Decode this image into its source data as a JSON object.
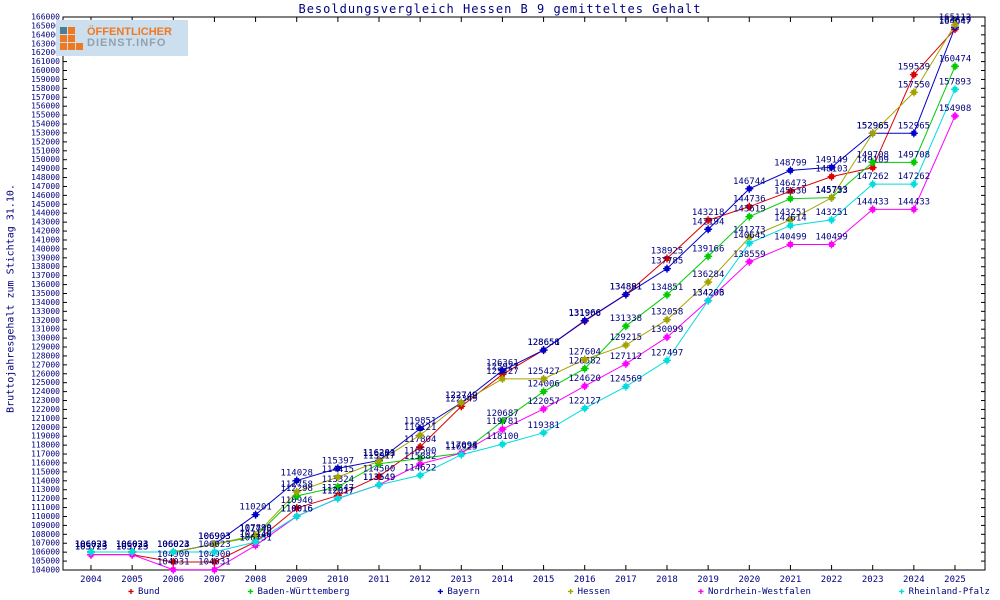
{
  "logo": {
    "line1": "ÖFFENTLICHER",
    "line2": "DIENST.INFO"
  },
  "chart_data": {
    "type": "line",
    "title": "Besoldungsvergleich Hessen B 9 gemitteltes Gehalt",
    "xlabel": "",
    "ylabel": "Bruttojahresgehalt zum Stichtag 31.10.",
    "ylim": [
      104000,
      166000
    ],
    "ytick_step": 1000,
    "grid": false,
    "legend_position": "bottom",
    "text_color": "#000080",
    "years": [
      2004,
      2005,
      2006,
      2007,
      2008,
      2009,
      2010,
      2011,
      2012,
      2013,
      2014,
      2015,
      2016,
      2017,
      2018,
      2019,
      2020,
      2021,
      2022,
      2023,
      2024,
      2025
    ],
    "series": [
      {
        "name": "Bund",
        "color": "#dd0000",
        "values": [
          105723,
          105723,
          104900,
          104900,
          107148,
          110946,
          112347,
          114500,
          117804,
          122349,
          125927,
          128651,
          131906,
          134881,
          138925,
          143218,
          144736,
          146473,
          148103,
          149109,
          159539,
          164647
        ]
      },
      {
        "name": "Baden-Württemberg",
        "color": "#00cc00",
        "values": [
          106023,
          106023,
          106023,
          106903,
          107748,
          112298,
          113324,
          115917,
          116500,
          117094,
          120687,
          124006,
          126582,
          131338,
          134851,
          139166,
          143619,
          145630,
          145753,
          149708,
          149708,
          160474
        ]
      },
      {
        "name": "Bayern",
        "color": "#0000cc",
        "values": [
          106023,
          106023,
          106023,
          106903,
          110201,
          114028,
          115397,
          116281,
          119851,
          122749,
          126361,
          128658,
          131966,
          134891,
          137785,
          142194,
          146744,
          148799,
          149149,
          152965,
          152965,
          164849
        ]
      },
      {
        "name": "Hessen",
        "color": "#a3a300",
        "values": [
          106024,
          106024,
          106024,
          106903,
          107890,
          112758,
          114415,
          116203,
          119121,
          122749,
          125427,
          125427,
          127604,
          129215,
          132058,
          136284,
          141273,
          143251,
          145733,
          152965,
          157550,
          165113
        ]
      },
      {
        "name": "Nordrhein-Westfalen",
        "color": "#ff00ff",
        "values": [
          105723,
          105723,
          104031,
          104031,
          106751,
          110016,
          112017,
          113549,
          115882,
          117093,
          119781,
          122057,
          124620,
          127112,
          130099,
          134206,
          138559,
          140499,
          140499,
          144433,
          144433,
          154908
        ]
      },
      {
        "name": "Rheinland-Pfalz",
        "color": "#00dddd",
        "values": [
          106023,
          106023,
          106023,
          106023,
          107146,
          110016,
          112017,
          113549,
          114622,
          116925,
          118100,
          119381,
          122127,
          124569,
          127497,
          134203,
          140645,
          142614,
          143251,
          147262,
          147262,
          157893
        ]
      }
    ]
  }
}
